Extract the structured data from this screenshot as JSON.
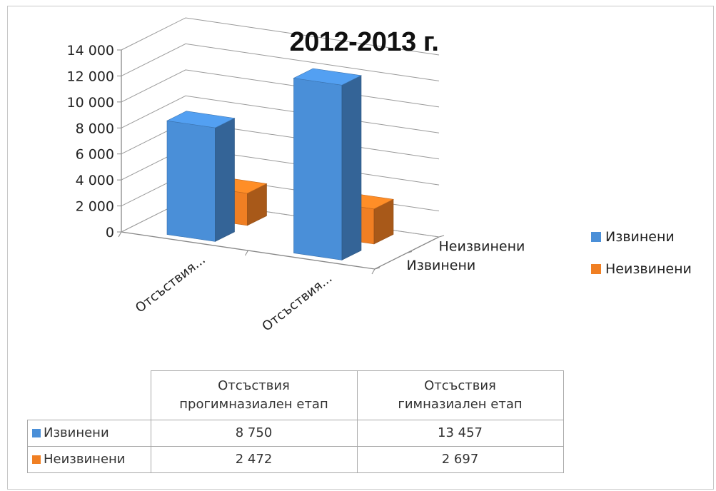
{
  "chart_data": {
    "type": "bar",
    "title": "2012-2013 г.",
    "categories": [
      "Отсъствия...",
      "Отсъствия..."
    ],
    "table_categories": [
      "Отсъствия прогимназиален етап",
      "Отсъствия гимназиален етап"
    ],
    "depth_labels": [
      "Извинени",
      "Неизвинени"
    ],
    "series": [
      {
        "name": "Извинени",
        "values": [
          8750,
          13457
        ],
        "display": [
          "8 750",
          "13 457"
        ],
        "color": "#4a8fd8"
      },
      {
        "name": "Неизвинени",
        "values": [
          2472,
          2697
        ],
        "display": [
          "2 472",
          "2 697"
        ],
        "color": "#f07f23"
      }
    ],
    "yticks": [
      "0",
      "2 000",
      "4 000",
      "6 000",
      "8 000",
      "10 000",
      "12 000",
      "14 000"
    ],
    "ylim": [
      0,
      14000
    ],
    "grid": true,
    "legend_position": "right",
    "projection": "3d"
  },
  "table": {
    "headers": [
      [
        "Отсъствия",
        "прогимназиален етап"
      ],
      [
        "Отсъствия",
        "гимназиален етап"
      ]
    ]
  }
}
